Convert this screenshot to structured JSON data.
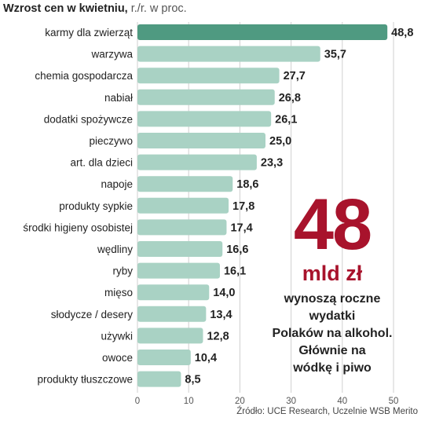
{
  "chart_data": {
    "type": "bar",
    "orientation": "horizontal",
    "title": "Wzrost cen w kwietniu,",
    "subtitle": "r./r. w proc.",
    "categories": [
      "karmy dla zwierząt",
      "warzywa",
      "chemia gospodarcza",
      "nabiał",
      "dodatki spożywcze",
      "pieczywo",
      "art. dla dzieci",
      "napoje",
      "produkty sypkie",
      "środki higieny osobistej",
      "wędliny",
      "ryby",
      "mięso",
      "słodycze / desery",
      "używki",
      "owoce",
      "produkty tłuszczowe"
    ],
    "values": [
      48.8,
      35.7,
      27.7,
      26.8,
      26.1,
      25.0,
      23.3,
      18.6,
      17.8,
      17.4,
      16.6,
      16.1,
      14.0,
      13.4,
      12.8,
      10.4,
      8.5
    ],
    "value_labels": [
      "48,8",
      "35,7",
      "27,7",
      "26,8",
      "26,1",
      "25,0",
      "23,3",
      "18,6",
      "17,8",
      "17,4",
      "16,6",
      "16,1",
      "14,0",
      "13,4",
      "12,8",
      "10,4",
      "8,5"
    ],
    "xlim": [
      0,
      50
    ],
    "xticks": [
      0,
      10,
      20,
      30,
      40,
      50
    ],
    "xlabel": "",
    "ylabel": "",
    "grid": true,
    "highlight_index": 0,
    "colors": {
      "highlight": "#4f9a81",
      "bar": "#a9d2c4",
      "grid": "#cfcfcf"
    }
  },
  "callout": {
    "number": "48",
    "unit": "mld zł",
    "text": "wynoszą roczne\nwydatki\nPolaków na alkohol.\nGłównie na\nwódkę i piwo",
    "color": "#a8132c"
  },
  "source": "Źródło: UCE Research, Uczelnie WSB Merito"
}
